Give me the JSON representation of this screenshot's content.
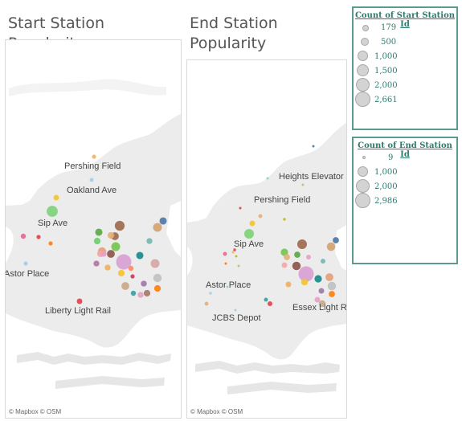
{
  "start_panel": {
    "title": "Start Station Popularity",
    "attribution": "© Mapbox  © OSM",
    "place_labels": [
      "Pershing Field",
      "Oakland Ave",
      "Sip Ave",
      "Astor Place",
      "Liberty Light Rail"
    ]
  },
  "end_panel": {
    "title": "End Station Popularity",
    "attribution": "© Mapbox  © OSM",
    "place_labels": [
      "Heights Elevator",
      "Pershing Field",
      "Sip Ave",
      "Astor Place",
      "JCBS Depot",
      "Essex Light Rail"
    ]
  },
  "legend_start": {
    "title": "Count of Start Station Id",
    "values": [
      "179",
      "500",
      "1,000",
      "1,500",
      "2,000",
      "2,661"
    ]
  },
  "legend_end": {
    "title": "Count of End Station Id",
    "values": [
      "9",
      "1,000",
      "2,000",
      "2,986"
    ]
  },
  "colors": {
    "water": "#ffffff",
    "land": "#ececec",
    "legend_border": "#5b9a8f",
    "legend_text": "#2c7a6e"
  },
  "chart_data": [
    {
      "type": "map",
      "panel": "start",
      "metric": "Count of Start Station Id",
      "stations": [
        {
          "color": "#f0b664",
          "count": 200
        },
        {
          "color": "#a6cee3",
          "count": 180
        },
        {
          "color": "#f5c330",
          "count": 350
        },
        {
          "color": "#7ed37a",
          "count": 1400
        },
        {
          "color": "#e8659a",
          "count": 300
        },
        {
          "color": "#e2434b",
          "count": 200
        },
        {
          "color": "#ff7f0e",
          "count": 200
        },
        {
          "color": "#9e6a4e",
          "count": 1100
        },
        {
          "color": "#4e79a7",
          "count": 600
        },
        {
          "color": "#5ca847",
          "count": 600
        },
        {
          "color": "#e5b07a",
          "count": 500
        },
        {
          "color": "#d4a373",
          "count": 900
        },
        {
          "color": "#6ccf6c",
          "count": 500
        },
        {
          "color": "#9e6a4e",
          "count": 700
        },
        {
          "color": "#76c44e",
          "count": 900
        },
        {
          "color": "#f7a6a6",
          "count": 500
        },
        {
          "color": "#e8a0c8",
          "count": 400
        },
        {
          "color": "#76b7b2",
          "count": 400
        },
        {
          "color": "#e2a178",
          "count": 800
        },
        {
          "color": "#b07aa1",
          "count": 400
        },
        {
          "color": "#8c564b",
          "count": 700
        },
        {
          "color": "#f0b060",
          "count": 400
        },
        {
          "color": "#d7a0d4",
          "count": 2661
        },
        {
          "color": "#19898c",
          "count": 600
        },
        {
          "color": "#d4a6a6",
          "count": 900
        },
        {
          "color": "#f5c330",
          "count": 500
        },
        {
          "color": "#ff8a5c",
          "count": 300
        },
        {
          "color": "#cc3b5a",
          "count": 200
        },
        {
          "color": "#c0c0c0",
          "count": 800
        },
        {
          "color": "#9c7aa6",
          "count": 400
        },
        {
          "color": "#ff7f0e",
          "count": 500
        },
        {
          "color": "#c9a88a",
          "count": 700
        },
        {
          "color": "#e8a0c8",
          "count": 400
        },
        {
          "color": "#a67a6a",
          "count": 500
        },
        {
          "color": "#3aa0a0",
          "count": 300
        },
        {
          "color": "#e2434b",
          "count": 350
        },
        {
          "color": "#a6cee3",
          "count": 200
        }
      ]
    },
    {
      "type": "map",
      "panel": "end",
      "metric": "Count of End Station Id",
      "stations": [
        {
          "color": "#4e79a7",
          "count": 30
        },
        {
          "color": "#8dd3c7",
          "count": 50
        },
        {
          "color": "#9ed266",
          "count": 60
        },
        {
          "color": "#e2434b",
          "count": 80
        },
        {
          "color": "#f5c330",
          "count": 400
        },
        {
          "color": "#e5b07a",
          "count": 200
        },
        {
          "color": "#bcbd22",
          "count": 100
        },
        {
          "color": "#7ed37a",
          "count": 1200
        },
        {
          "color": "#e8659a",
          "count": 200
        },
        {
          "color": "#e2434b",
          "count": 100
        },
        {
          "color": "#ff7f0e",
          "count": 80
        },
        {
          "color": "#9e6a4e",
          "count": 1200
        },
        {
          "color": "#4e79a7",
          "count": 500
        },
        {
          "color": "#76c44e",
          "count": 700
        },
        {
          "color": "#e5b07a",
          "count": 500
        },
        {
          "color": "#5ca847",
          "count": 500
        },
        {
          "color": "#8c564b",
          "count": 900
        },
        {
          "color": "#d4a373",
          "count": 900
        },
        {
          "color": "#f7a6a6",
          "count": 400
        },
        {
          "color": "#e8a0c8",
          "count": 300
        },
        {
          "color": "#76b7b2",
          "count": 300
        },
        {
          "color": "#d7a0d4",
          "count": 2986
        },
        {
          "color": "#19898c",
          "count": 700
        },
        {
          "color": "#e2a178",
          "count": 800
        },
        {
          "color": "#f0b060",
          "count": 400
        },
        {
          "color": "#f5c330",
          "count": 600
        },
        {
          "color": "#c0c0c0",
          "count": 900
        },
        {
          "color": "#9c7aa6",
          "count": 400
        },
        {
          "color": "#ff7f0e",
          "count": 500
        },
        {
          "color": "#c9a88a",
          "count": 600
        },
        {
          "color": "#e8a0c8",
          "count": 400
        },
        {
          "color": "#3aa0a0",
          "count": 200
        },
        {
          "color": "#e2434b",
          "count": 300
        },
        {
          "color": "#a6cee3",
          "count": 100
        },
        {
          "color": "#9ed266",
          "count": 50
        },
        {
          "color": "#bcbd22",
          "count": 40
        },
        {
          "color": "#f0b664",
          "count": 40
        },
        {
          "color": "#8dd3c7",
          "count": 60
        },
        {
          "color": "#e5b07a",
          "count": 200
        },
        {
          "color": "#a6cee3",
          "count": 80
        }
      ]
    }
  ]
}
